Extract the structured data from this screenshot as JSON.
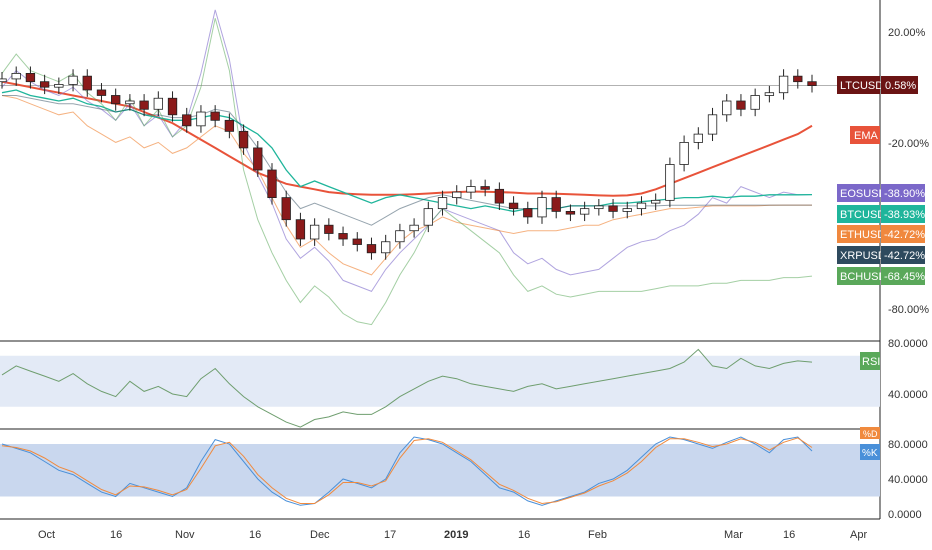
{
  "colors": {
    "up": "#ffffff",
    "down": "#8b1a1a",
    "ema": "#e8533a",
    "eos": "#7b68c9",
    "btc": "#1fb59b",
    "eth": "#f0883e",
    "xrp": "#2e4a5e",
    "bch": "#5aa85a",
    "rsi_line": "#6f9e6f",
    "k_line": "#4a90d9",
    "d_line": "#f08a3e",
    "band_fill": "#c9d7ee",
    "ltc_tag": "#6b1414"
  },
  "chart_data": [
    {
      "type": "line",
      "panel": "main",
      "main_series": "LTCUSD (candlestick)",
      "x_ticks": [
        "Oct",
        "16",
        "Nov",
        "16",
        "Dec",
        "17",
        "2019",
        "16",
        "Feb",
        "Mar",
        "16",
        "Apr"
      ],
      "y_ticks": [
        "20.00%",
        "-20.00%",
        "-80.00%"
      ],
      "ylim_percent": [
        -95,
        30
      ],
      "legend_tags": [
        {
          "label": "LTCUSD",
          "value": "0.58%",
          "color": "#6b1414"
        },
        {
          "label": "EMA",
          "value": "",
          "color": "#e8533a"
        },
        {
          "label": "EOSUSD",
          "value": "-38.90%",
          "color": "#7b68c9"
        },
        {
          "label": "BTCUSD",
          "value": "-38.93%",
          "color": "#1fb59b"
        },
        {
          "label": "ETHUSD",
          "value": "-42.72%",
          "color": "#f0883e"
        },
        {
          "label": "XRPUSD",
          "value": "-42.72%",
          "color": "#2e4a5e"
        },
        {
          "label": "BCHUSD",
          "value": "-68.45%",
          "color": "#5aa85a"
        }
      ],
      "series": [
        {
          "name": "LTCUSD",
          "values": [
            3,
            5,
            2,
            0,
            1,
            4,
            -1,
            -3,
            -6,
            -5,
            -8,
            -4,
            -10,
            -14,
            -9,
            -12,
            -16,
            -22,
            -30,
            -40,
            -48,
            -55,
            -50,
            -53,
            -55,
            -57,
            -60,
            -56,
            -52,
            -50,
            -44,
            -40,
            -38,
            -36,
            -37,
            -42,
            -44,
            -47,
            -40,
            -45,
            -46,
            -44,
            -43,
            -45,
            -44,
            -42,
            -41,
            -28,
            -20,
            -17,
            -10,
            -5,
            -8,
            -3,
            -2,
            4,
            2,
            0.58
          ]
        },
        {
          "name": "EMA",
          "values": [
            2,
            1,
            0,
            -1,
            -2,
            -3,
            -4,
            -5,
            -6,
            -7,
            -9,
            -11,
            -13,
            -16,
            -19,
            -22,
            -25,
            -28,
            -31,
            -33,
            -35,
            -36,
            -37,
            -38,
            -38.5,
            -38.8,
            -39,
            -39,
            -39,
            -38.8,
            -38.5,
            -38.2,
            -38,
            -37.8,
            -37.9,
            -38,
            -38.2,
            -38.5,
            -38.5,
            -38.6,
            -38.8,
            -39,
            -39.2,
            -39.3,
            -39.2,
            -38.5,
            -37,
            -35,
            -33,
            -31,
            -29,
            -27,
            -25,
            -23,
            -21,
            -19,
            -17,
            -14
          ]
        },
        {
          "name": "EOSUSD",
          "values": [
            0,
            6,
            2,
            -1,
            -3,
            0,
            -5,
            -8,
            -12,
            -6,
            -14,
            -10,
            -18,
            -12,
            5,
            28,
            10,
            -20,
            -32,
            -42,
            -55,
            -62,
            -58,
            -63,
            -70,
            -72,
            -74,
            -66,
            -60,
            -55,
            -50,
            -44,
            -46,
            -48,
            -50,
            -52,
            -60,
            -64,
            -62,
            -66,
            -68,
            -67,
            -66,
            -62,
            -58,
            -56,
            -55,
            -52,
            -50,
            -46,
            -40,
            -42,
            -36,
            -38,
            -40,
            -38,
            -39,
            -38.9
          ]
        },
        {
          "name": "BTCUSD",
          "values": [
            -2,
            -1,
            -3,
            -4,
            -5,
            -4,
            -6,
            -7,
            -9,
            -8,
            -10,
            -11,
            -12,
            -12,
            -11,
            -10,
            -11,
            -14,
            -17,
            -22,
            -30,
            -36,
            -34,
            -36,
            -38,
            -40,
            -42,
            -40,
            -39,
            -40,
            -41,
            -42,
            -43,
            -44,
            -43,
            -44,
            -45,
            -44,
            -44,
            -44,
            -43,
            -43,
            -43,
            -42,
            -42,
            -41.5,
            -41,
            -40.5,
            -40,
            -40,
            -39.5,
            -40,
            -39.5,
            -39.5,
            -39,
            -39,
            -39,
            -38.93
          ]
        },
        {
          "name": "ETHUSD",
          "values": [
            -3,
            -4,
            -6,
            -8,
            -10,
            -9,
            -14,
            -17,
            -20,
            -18,
            -22,
            -20,
            -24,
            -22,
            -18,
            -14,
            -16,
            -24,
            -30,
            -40,
            -50,
            -58,
            -55,
            -60,
            -64,
            -66,
            -68,
            -62,
            -56,
            -52,
            -50,
            -47,
            -49,
            -50,
            -51,
            -52,
            -53,
            -52,
            -52,
            -52,
            -51,
            -50,
            -50,
            -48,
            -47,
            -46,
            -45,
            -44,
            -44,
            -43.5,
            -43,
            -43,
            -43,
            -43,
            -42.8,
            -42.7,
            -42.7,
            -42.72
          ]
        },
        {
          "name": "XRPUSD",
          "values": [
            -3,
            -3,
            -4,
            -5,
            -6,
            -6,
            -7,
            -8,
            -9,
            -8,
            -10,
            -10,
            -11,
            -11,
            -10,
            -8,
            -9,
            -15,
            -22,
            -30,
            -38,
            -44,
            -42,
            -44,
            -46,
            -48,
            -50,
            -47,
            -44,
            -42,
            -40,
            -39,
            -40,
            -41,
            -42,
            -43,
            -44,
            -44,
            -44,
            -44,
            -43,
            -43,
            -43,
            -43,
            -43,
            -43,
            -43,
            -42.8,
            -42.8,
            -42.8,
            -42.7,
            -42.7,
            -42.7,
            -42.7,
            -42.7,
            -42.7,
            -42.7,
            -42.72
          ]
        },
        {
          "name": "BCHUSD",
          "values": [
            5,
            12,
            6,
            4,
            2,
            5,
            -2,
            -6,
            -12,
            -4,
            -14,
            -8,
            -18,
            -14,
            0,
            25,
            6,
            -30,
            -48,
            -60,
            -70,
            -78,
            -72,
            -76,
            -82,
            -85,
            -86,
            -78,
            -68,
            -60,
            -50,
            -44,
            -48,
            -52,
            -56,
            -60,
            -68,
            -74,
            -72,
            -75,
            -76,
            -75,
            -74,
            -74,
            -74,
            -74,
            -73,
            -72,
            -72,
            -72,
            -71,
            -71,
            -70,
            -70,
            -70,
            -69,
            -69,
            -68.45
          ]
        }
      ]
    },
    {
      "type": "line",
      "panel": "rsi",
      "tag": "RSI",
      "y_ticks": [
        "80.0000",
        "40.0000"
      ],
      "ylim": [
        10,
        90
      ],
      "band": [
        30,
        70
      ],
      "series": [
        {
          "name": "RSI",
          "values": [
            55,
            62,
            58,
            54,
            50,
            56,
            48,
            42,
            38,
            50,
            42,
            46,
            40,
            38,
            52,
            60,
            48,
            38,
            30,
            24,
            18,
            14,
            20,
            22,
            26,
            24,
            24,
            30,
            38,
            44,
            50,
            54,
            52,
            48,
            46,
            44,
            42,
            46,
            48,
            44,
            46,
            48,
            50,
            52,
            54,
            56,
            58,
            60,
            65,
            75,
            62,
            60,
            68,
            62,
            60,
            64,
            66,
            65
          ]
        }
      ]
    },
    {
      "type": "line",
      "panel": "stochastic",
      "tags": [
        "%D",
        "%K"
      ],
      "y_ticks": [
        "80.0000",
        "40.0000",
        "0.0000"
      ],
      "ylim": [
        0,
        95
      ],
      "band": [
        20,
        80
      ],
      "series": [
        {
          "name": "%K",
          "values": [
            80,
            75,
            70,
            60,
            50,
            45,
            35,
            25,
            20,
            35,
            30,
            25,
            20,
            30,
            60,
            85,
            80,
            60,
            40,
            25,
            15,
            10,
            12,
            25,
            40,
            35,
            30,
            40,
            70,
            88,
            85,
            80,
            70,
            60,
            45,
            30,
            25,
            15,
            10,
            15,
            20,
            25,
            35,
            40,
            50,
            65,
            80,
            88,
            85,
            80,
            75,
            82,
            88,
            80,
            70,
            85,
            88,
            72
          ]
        },
        {
          "name": "%D",
          "values": [
            78,
            76,
            72,
            64,
            54,
            48,
            38,
            28,
            22,
            32,
            31,
            27,
            22,
            28,
            52,
            78,
            82,
            66,
            45,
            30,
            18,
            12,
            12,
            22,
            36,
            36,
            32,
            38,
            64,
            84,
            86,
            82,
            72,
            62,
            48,
            34,
            27,
            18,
            12,
            14,
            19,
            24,
            32,
            38,
            47,
            60,
            76,
            86,
            86,
            82,
            77,
            80,
            86,
            82,
            73,
            82,
            87,
            76
          ]
        }
      ]
    }
  ]
}
